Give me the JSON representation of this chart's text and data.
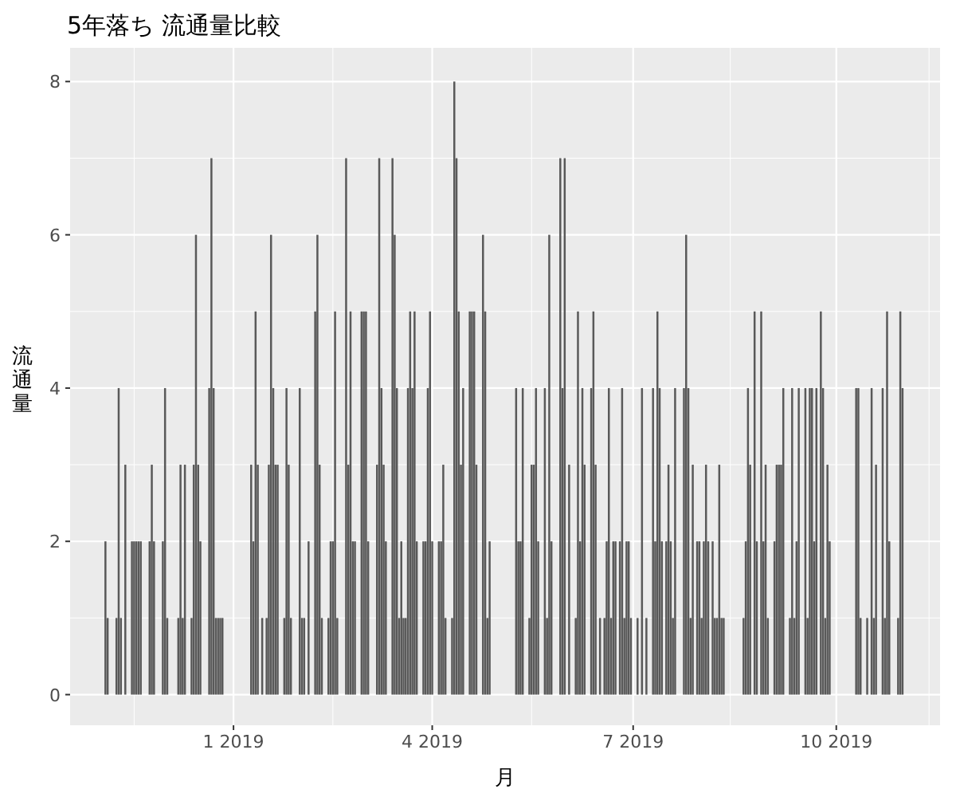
{
  "chart_data": {
    "type": "bar",
    "title": "5年落ち 流通量比較",
    "xlabel": "月",
    "ylabel": "流通量",
    "color": "#595959",
    "grid": true,
    "xlim": [
      "2018-10-19",
      "2019-11-17"
    ],
    "xticks": [
      {
        "value": "2019-01-01",
        "label": "1 2019"
      },
      {
        "value": "2019-04-01",
        "label": "4 2019"
      },
      {
        "value": "2019-07-01",
        "label": "7 2019"
      },
      {
        "value": "2019-10-01",
        "label": "10 2019"
      }
    ],
    "ylim": [
      -0.4,
      8.44
    ],
    "yticks": [
      0,
      2,
      4,
      6,
      8
    ],
    "x": [
      "2018-11-04",
      "2018-11-05",
      "2018-11-09",
      "2018-11-10",
      "2018-11-11",
      "2018-11-13",
      "2018-11-16",
      "2018-11-17",
      "2018-11-18",
      "2018-11-19",
      "2018-11-20",
      "2018-11-24",
      "2018-11-25",
      "2018-11-26",
      "2018-11-30",
      "2018-12-01",
      "2018-12-02",
      "2018-12-07",
      "2018-12-08",
      "2018-12-09",
      "2018-12-10",
      "2018-12-13",
      "2018-12-14",
      "2018-12-15",
      "2018-12-16",
      "2018-12-17",
      "2018-12-21",
      "2018-12-22",
      "2018-12-23",
      "2018-12-24",
      "2018-12-25",
      "2018-12-26",
      "2018-12-27",
      "2019-01-09",
      "2019-01-10",
      "2019-01-11",
      "2019-01-12",
      "2019-01-14",
      "2019-01-16",
      "2019-01-17",
      "2019-01-18",
      "2019-01-19",
      "2019-01-20",
      "2019-01-21",
      "2019-01-24",
      "2019-01-25",
      "2019-01-26",
      "2019-01-27",
      "2019-01-31",
      "2019-02-01",
      "2019-02-02",
      "2019-02-04",
      "2019-02-07",
      "2019-02-08",
      "2019-02-09",
      "2019-02-10",
      "2019-02-13",
      "2019-02-14",
      "2019-02-15",
      "2019-02-16",
      "2019-02-17",
      "2019-02-21",
      "2019-02-22",
      "2019-02-23",
      "2019-02-24",
      "2019-02-25",
      "2019-02-28",
      "2019-03-01",
      "2019-03-02",
      "2019-03-03",
      "2019-03-07",
      "2019-03-08",
      "2019-03-09",
      "2019-03-10",
      "2019-03-11",
      "2019-03-14",
      "2019-03-15",
      "2019-03-16",
      "2019-03-17",
      "2019-03-18",
      "2019-03-19",
      "2019-03-20",
      "2019-03-21",
      "2019-03-22",
      "2019-03-23",
      "2019-03-24",
      "2019-03-25",
      "2019-03-28",
      "2019-03-29",
      "2019-03-30",
      "2019-03-31",
      "2019-04-01",
      "2019-04-04",
      "2019-04-05",
      "2019-04-06",
      "2019-04-07",
      "2019-04-10",
      "2019-04-11",
      "2019-04-12",
      "2019-04-13",
      "2019-04-14",
      "2019-04-15",
      "2019-04-18",
      "2019-04-19",
      "2019-04-20",
      "2019-04-21",
      "2019-04-24",
      "2019-04-25",
      "2019-04-26",
      "2019-04-27",
      "2019-05-09",
      "2019-05-10",
      "2019-05-11",
      "2019-05-12",
      "2019-05-15",
      "2019-05-16",
      "2019-05-17",
      "2019-05-18",
      "2019-05-19",
      "2019-05-22",
      "2019-05-23",
      "2019-05-24",
      "2019-05-25",
      "2019-05-29",
      "2019-05-30",
      "2019-05-31",
      "2019-06-02",
      "2019-06-05",
      "2019-06-06",
      "2019-06-07",
      "2019-06-08",
      "2019-06-09",
      "2019-06-12",
      "2019-06-13",
      "2019-06-14",
      "2019-06-16",
      "2019-06-18",
      "2019-06-19",
      "2019-06-20",
      "2019-06-21",
      "2019-06-22",
      "2019-06-23",
      "2019-06-25",
      "2019-06-26",
      "2019-06-27",
      "2019-06-28",
      "2019-06-29",
      "2019-06-30",
      "2019-07-03",
      "2019-07-05",
      "2019-07-07",
      "2019-07-10",
      "2019-07-11",
      "2019-07-12",
      "2019-07-13",
      "2019-07-14",
      "2019-07-16",
      "2019-07-17",
      "2019-07-18",
      "2019-07-19",
      "2019-07-20",
      "2019-07-24",
      "2019-07-25",
      "2019-07-26",
      "2019-07-27",
      "2019-07-28",
      "2019-07-30",
      "2019-07-31",
      "2019-08-01",
      "2019-08-02",
      "2019-08-03",
      "2019-08-04",
      "2019-08-06",
      "2019-08-07",
      "2019-08-08",
      "2019-08-09",
      "2019-08-10",
      "2019-08-11",
      "2019-08-20",
      "2019-08-21",
      "2019-08-22",
      "2019-08-23",
      "2019-08-25",
      "2019-08-26",
      "2019-08-28",
      "2019-08-29",
      "2019-08-30",
      "2019-08-31",
      "2019-09-03",
      "2019-09-04",
      "2019-09-05",
      "2019-09-06",
      "2019-09-07",
      "2019-09-10",
      "2019-09-11",
      "2019-09-12",
      "2019-09-13",
      "2019-09-14",
      "2019-09-17",
      "2019-09-18",
      "2019-09-19",
      "2019-09-20",
      "2019-09-21",
      "2019-09-22",
      "2019-09-24",
      "2019-09-25",
      "2019-09-26",
      "2019-09-27",
      "2019-09-28",
      "2019-10-10",
      "2019-10-11",
      "2019-10-12",
      "2019-10-15",
      "2019-10-17",
      "2019-10-18",
      "2019-10-19",
      "2019-10-22",
      "2019-10-23",
      "2019-10-24",
      "2019-10-25",
      "2019-10-29",
      "2019-10-30",
      "2019-10-31"
    ],
    "values": [
      2,
      1,
      1,
      4,
      1,
      3,
      2,
      2,
      2,
      2,
      2,
      2,
      3,
      2,
      2,
      4,
      1,
      1,
      3,
      1,
      3,
      1,
      3,
      6,
      3,
      2,
      4,
      7,
      4,
      1,
      1,
      1,
      1,
      3,
      2,
      5,
      3,
      1,
      1,
      3,
      6,
      4,
      3,
      3,
      1,
      4,
      3,
      1,
      4,
      1,
      1,
      2,
      5,
      6,
      3,
      1,
      1,
      2,
      2,
      5,
      1,
      7,
      3,
      5,
      2,
      2,
      5,
      5,
      5,
      2,
      3,
      7,
      4,
      3,
      2,
      7,
      6,
      4,
      1,
      2,
      1,
      1,
      4,
      5,
      4,
      5,
      2,
      2,
      2,
      4,
      5,
      2,
      2,
      2,
      3,
      1,
      1,
      8,
      7,
      5,
      3,
      4,
      5,
      5,
      5,
      3,
      6,
      5,
      1,
      2,
      4,
      2,
      2,
      4,
      1,
      3,
      3,
      4,
      2,
      4,
      1,
      6,
      2,
      7,
      4,
      7,
      3,
      1,
      5,
      2,
      4,
      3,
      4,
      5,
      3,
      1,
      1,
      2,
      4,
      1,
      2,
      2,
      2,
      4,
      1,
      2,
      2,
      1,
      1,
      4,
      1,
      4,
      2,
      5,
      4,
      2,
      2,
      3,
      2,
      1,
      4,
      4,
      6,
      4,
      1,
      3,
      2,
      2,
      1,
      2,
      3,
      2,
      2,
      1,
      1,
      3,
      1,
      1,
      1,
      2,
      4,
      3,
      5,
      2,
      5,
      2,
      3,
      1,
      2,
      3,
      3,
      3,
      4,
      1,
      4,
      1,
      2,
      4,
      4,
      1,
      4,
      4,
      2,
      4,
      5,
      4,
      1,
      3,
      2,
      4,
      4,
      1,
      1,
      4,
      1,
      3,
      4,
      1,
      5,
      2,
      1,
      5,
      4
    ]
  }
}
